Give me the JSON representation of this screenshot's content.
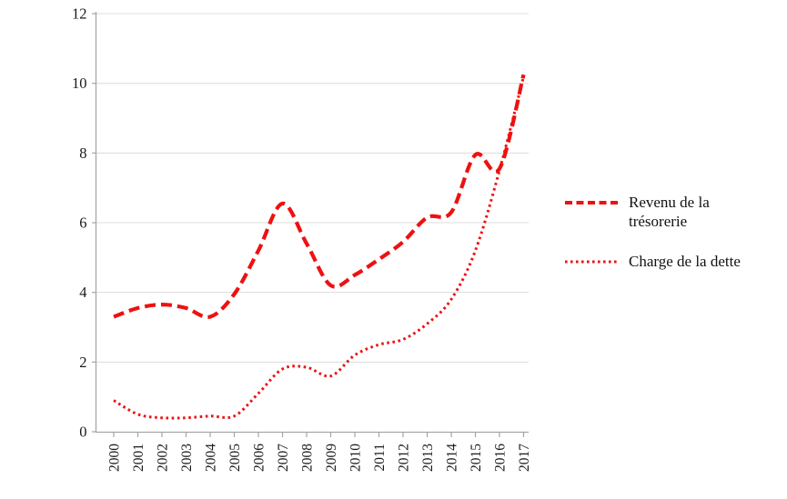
{
  "chart_data": {
    "type": "line",
    "title": "",
    "xlabel": "",
    "ylabel": "",
    "categories": [
      "2000",
      "2001",
      "2002",
      "2003",
      "2004",
      "2005",
      "2006",
      "2007",
      "2008",
      "2009",
      "2010",
      "2011",
      "2012",
      "2013",
      "2014",
      "2015",
      "2016",
      "2017"
    ],
    "series": [
      {
        "name": "Revenu de la trésorerie",
        "style": "dashed",
        "color": "#ee1111",
        "values": [
          3.3,
          3.55,
          3.65,
          3.55,
          3.3,
          3.95,
          5.2,
          6.55,
          5.4,
          4.2,
          4.5,
          4.95,
          5.45,
          6.15,
          6.3,
          7.95,
          7.55,
          10.25
        ]
      },
      {
        "name": "Charge de la dette",
        "style": "dotted",
        "color": "#ee1111",
        "values": [
          0.9,
          0.5,
          0.4,
          0.4,
          0.45,
          0.45,
          1.1,
          1.8,
          1.85,
          1.6,
          2.2,
          2.5,
          2.65,
          3.1,
          3.8,
          5.2,
          7.5,
          10.2
        ]
      }
    ],
    "ylim": [
      0,
      12
    ],
    "yticks": [
      0,
      2,
      4,
      6,
      8,
      10,
      12
    ],
    "grid": true,
    "legend_position": "right",
    "x_tick_label_rotation_deg": 90
  },
  "colors": {
    "line_red": "#ee1111",
    "gridline": "#dcdcdc",
    "axis": "#a6a6a6",
    "tick_text": "#1a1a1a"
  }
}
